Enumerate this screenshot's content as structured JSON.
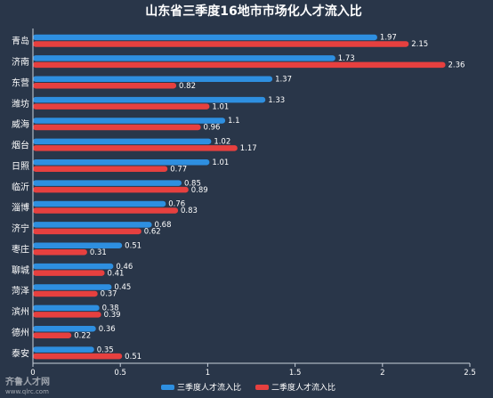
{
  "chart_data": {
    "type": "bar",
    "orientation": "horizontal",
    "title": "山东省三季度16地市市场化人才流入比",
    "categories": [
      "青岛",
      "济南",
      "东营",
      "潍坊",
      "威海",
      "烟台",
      "日照",
      "临沂",
      "淄博",
      "济宁",
      "枣庄",
      "聊城",
      "菏泽",
      "滨州",
      "德州",
      "泰安"
    ],
    "series": [
      {
        "name": "三季度人才流入比",
        "color": "#2e8fe0",
        "values": [
          1.97,
          1.73,
          1.37,
          1.33,
          1.1,
          1.02,
          1.01,
          0.85,
          0.76,
          0.68,
          0.51,
          0.46,
          0.45,
          0.38,
          0.36,
          0.35
        ],
        "labels": [
          "1.97",
          "1.73",
          "1.37",
          "1.33",
          "1.1",
          "1.02",
          "1.01",
          "0.85",
          "0.76",
          "0.68",
          "0.51",
          "0.46",
          "0.45",
          "0.38",
          "0.36",
          "0.35"
        ]
      },
      {
        "name": "二季度人才流入比",
        "color": "#e6403f",
        "values": [
          2.15,
          2.36,
          0.82,
          1.01,
          0.96,
          1.17,
          0.77,
          0.89,
          0.83,
          0.62,
          0.31,
          0.41,
          0.37,
          0.39,
          0.22,
          0.51
        ],
        "labels": [
          "2.15",
          "2.36",
          "0.82",
          "1.01",
          "0.96",
          "1.17",
          "0.77",
          "0.89",
          "0.83",
          "0.62",
          "0.31",
          "0.41",
          "0.37",
          "0.39",
          "0.22",
          "0.51"
        ]
      }
    ],
    "xlim": [
      0,
      2.5
    ],
    "xticks": [
      "0",
      "0.5",
      "1",
      "1.5",
      "2",
      "2.5"
    ],
    "legend_position": "bottom-right",
    "grid": false
  },
  "watermark": {
    "text": "齐鲁人才网",
    "url": "www.qlrc.com"
  },
  "colors": {
    "background": "#293649",
    "axis": "#c9d1dc"
  }
}
